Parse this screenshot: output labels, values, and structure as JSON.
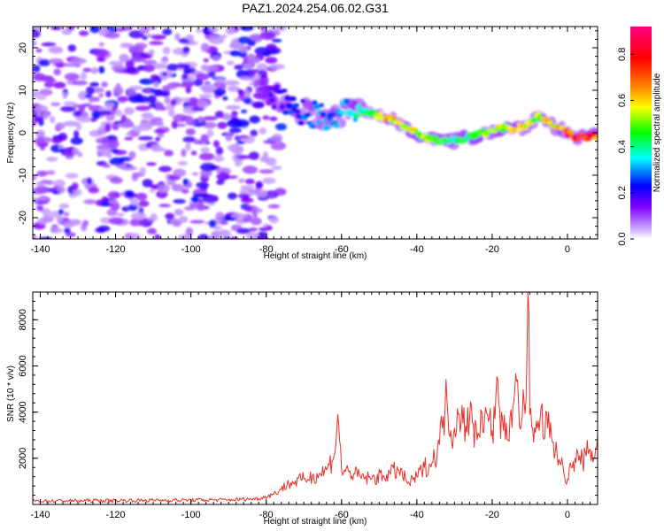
{
  "title": "PAZ1.2024.254.06.02.G31",
  "chart_data": [
    {
      "type": "heatmap",
      "xlabel": "Height of straight line (km)",
      "ylabel": "Frequency (Hz)",
      "xlim": [
        -142,
        8
      ],
      "ylim": [
        -25,
        25
      ],
      "xticks": [
        -140,
        -120,
        -100,
        -80,
        -60,
        -40,
        -20,
        0
      ],
      "yticks": [
        -20,
        -10,
        0,
        10,
        20
      ],
      "colorbar": {
        "label": "Normalized spectral amplitude",
        "range": [
          0,
          0.92
        ],
        "ticks": [
          0.0,
          0.2,
          0.4,
          0.6,
          0.8
        ],
        "colors": [
          "#ffffff",
          "#8000ff",
          "#0000ff",
          "#00ffff",
          "#00ff00",
          "#ffff00",
          "#ff8000",
          "#ff0000",
          "#ff0080"
        ]
      },
      "noise_region": {
        "x": [
          -142,
          -80
        ],
        "y": [
          -25,
          25
        ],
        "amplitude": [
          0.05,
          0.25
        ]
      },
      "ridge": {
        "x": [
          -82,
          -78,
          -74,
          -70,
          -66,
          -62,
          -58,
          -54,
          -50,
          -46,
          -42,
          -38,
          -34,
          -30,
          -26,
          -22,
          -18,
          -14,
          -10,
          -8,
          -6,
          -2,
          2,
          6,
          8
        ],
        "y": [
          11,
          9,
          6,
          5,
          4,
          3,
          6,
          5,
          4,
          3,
          1,
          -1,
          -2,
          -2,
          -1,
          0,
          1,
          1,
          2,
          4,
          3,
          1,
          -1,
          -1,
          -1
        ],
        "amplitude": [
          0.12,
          0.18,
          0.25,
          0.3,
          0.3,
          0.3,
          0.35,
          0.45,
          0.6,
          0.7,
          0.6,
          0.55,
          0.5,
          0.45,
          0.5,
          0.55,
          0.6,
          0.62,
          0.65,
          0.55,
          0.6,
          0.7,
          0.82,
          0.85,
          0.7
        ]
      }
    },
    {
      "type": "line",
      "xlabel": "Height of straight line (km)",
      "ylabel": "SNR (10 * v/v)",
      "xlim": [
        -142,
        8
      ],
      "ylim": [
        0,
        9200
      ],
      "xticks": [
        -140,
        -120,
        -100,
        -80,
        -60,
        -40,
        -20,
        0
      ],
      "yticks": [
        2000,
        4000,
        6000,
        8000
      ],
      "series": [
        {
          "color": "#e8302a",
          "x": [
            -142,
            -130,
            -120,
            -110,
            -100,
            -90,
            -82,
            -78,
            -74,
            -70,
            -66,
            -64,
            -62,
            -61,
            -60,
            -58,
            -55,
            -52,
            -48,
            -45,
            -42,
            -40,
            -38,
            -36,
            -34,
            -33,
            -32,
            -31,
            -30,
            -29,
            -28,
            -27,
            -26,
            -25,
            -24,
            -23,
            -22,
            -21,
            -20,
            -19,
            -18,
            -17,
            -16,
            -15,
            -14,
            -13,
            -12,
            -11,
            -10.5,
            -10,
            -9,
            -8,
            -7,
            -6,
            -5,
            -4,
            -3,
            -2,
            -1,
            0,
            1,
            2,
            3,
            4,
            5,
            6,
            7,
            8
          ],
          "y": [
            150,
            160,
            170,
            180,
            190,
            200,
            250,
            450,
            900,
            1100,
            1300,
            1500,
            2100,
            3900,
            1500,
            1400,
            1200,
            1100,
            1300,
            1500,
            900,
            1200,
            1600,
            1800,
            2600,
            3800,
            4500,
            3200,
            3300,
            3900,
            4300,
            3400,
            3700,
            3500,
            2800,
            4100,
            3800,
            3600,
            3200,
            4800,
            4100,
            3200,
            2800,
            4100,
            4900,
            4400,
            3800,
            4600,
            9200,
            3900,
            2700,
            3300,
            4200,
            2900,
            4000,
            2700,
            2700,
            1800,
            1400,
            1100,
            1600,
            2000,
            1900,
            1900,
            2100,
            2400,
            2000,
            3000
          ]
        }
      ]
    }
  ]
}
